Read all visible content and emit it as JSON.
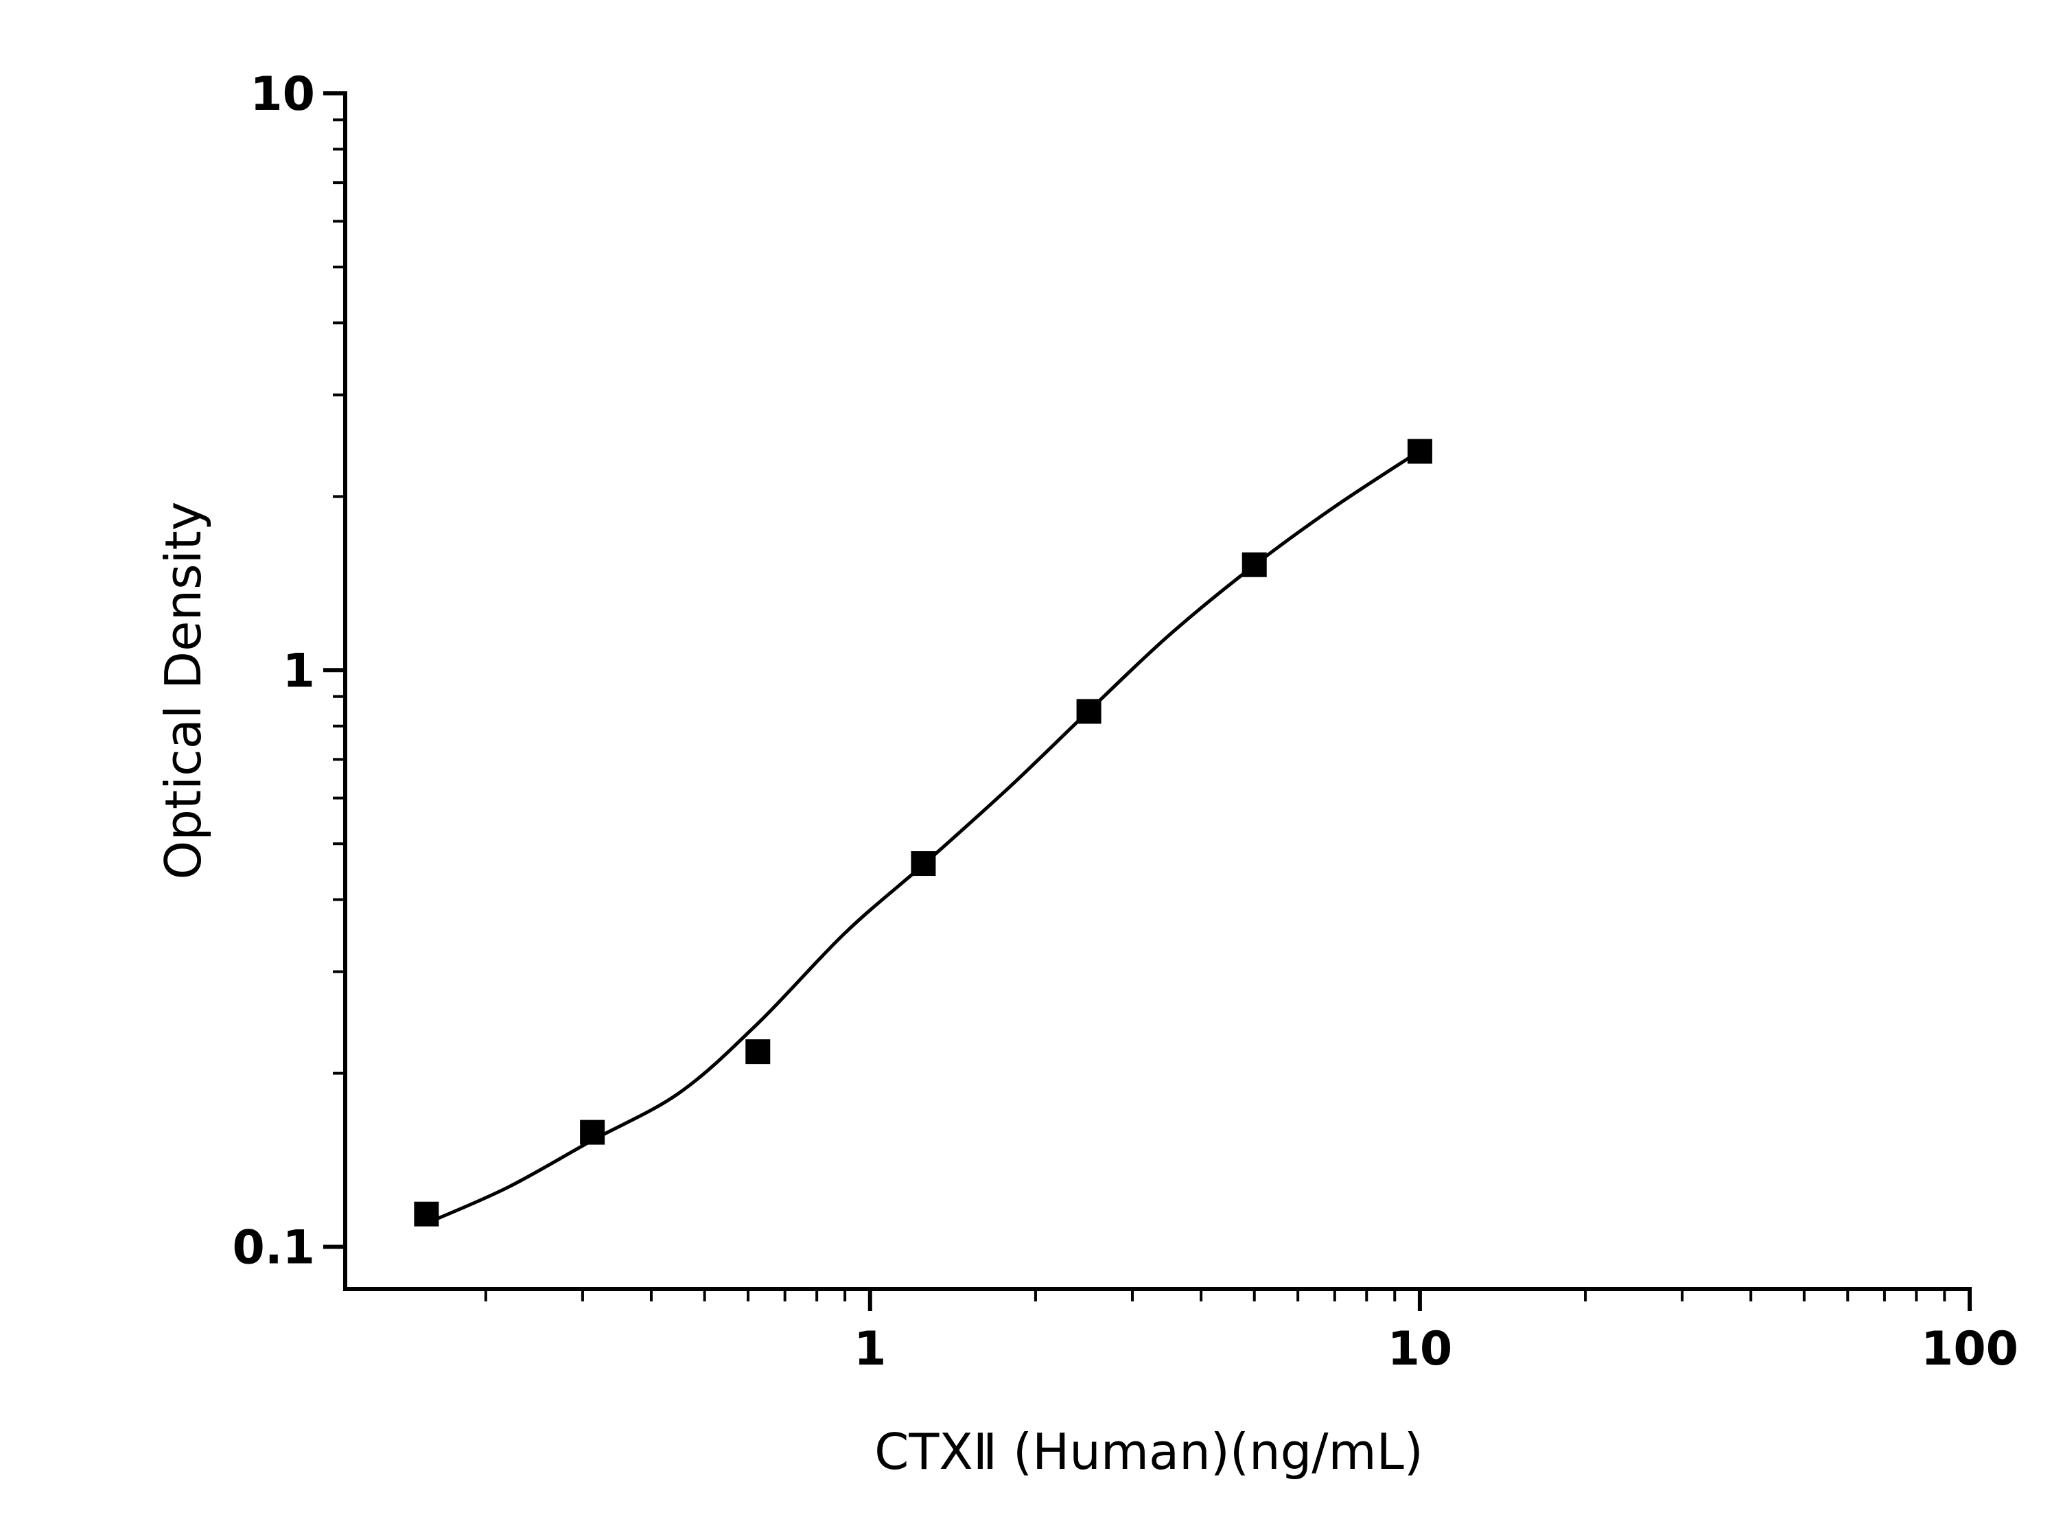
{
  "chart_data": {
    "type": "scatter",
    "x_label": "CTXⅡ (Human)(ng/mL)",
    "y_label": "Optical Density",
    "xscale": "log",
    "yscale": "log",
    "x": [
      0.156,
      0.3125,
      0.625,
      1.25,
      2.5,
      5,
      10
    ],
    "series": [
      {
        "color": "#000000",
        "values": [
          0.114,
          0.158,
          0.218,
          0.462,
          0.848,
          1.523,
          2.395
        ]
      }
    ],
    "fit": {
      "color": "#000000",
      "x": [
        0.16,
        0.22,
        0.3125,
        0.45,
        0.625,
        0.9,
        1.25,
        1.8,
        2.5,
        3.5,
        5,
        7,
        10
      ],
      "values": [
        0.111,
        0.127,
        0.153,
        0.185,
        0.244,
        0.35,
        0.46,
        0.629,
        0.85,
        1.15,
        1.52,
        1.92,
        2.4
      ]
    },
    "xlim": [
      0.111,
      100
    ],
    "ylim": [
      0.0845,
      10
    ],
    "xticks": [
      1,
      10,
      100
    ],
    "yticks": [
      0.1,
      1,
      10
    ],
    "xminor_ticks": [
      0.2,
      0.3,
      0.4,
      0.5,
      0.6,
      0.7,
      0.8,
      0.9,
      2,
      3,
      4,
      5,
      6,
      7,
      8,
      9,
      20,
      30,
      40,
      50,
      60,
      70,
      80,
      90
    ],
    "yminor_ticks": [
      0.2,
      0.3,
      0.4,
      0.5,
      0.6,
      0.7,
      0.8,
      0.9,
      2,
      3,
      4,
      5,
      6,
      7,
      8,
      9
    ]
  }
}
